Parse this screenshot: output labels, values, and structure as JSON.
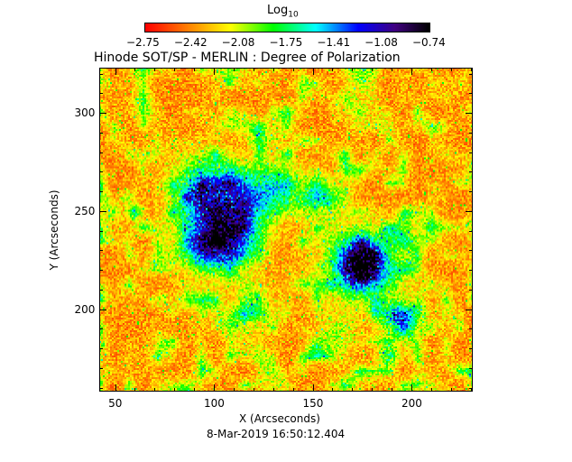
{
  "chart_data": {
    "type": "heatmap",
    "title": "Hinode SOT/SP - MERLIN : Degree of Polarization",
    "xlabel": "X (Arcseconds)",
    "ylabel": "Y (Arcseconds)",
    "xlim": [
      42,
      231
    ],
    "ylim": [
      158,
      323
    ],
    "xticks": [
      "50",
      "100",
      "150",
      "200"
    ],
    "xtick_values": [
      50,
      100,
      150,
      200
    ],
    "yticks": [
      "200",
      "250",
      "300"
    ],
    "ytick_values": [
      200,
      250,
      300
    ],
    "colorbar": {
      "label": "Log",
      "label_sub": "10",
      "ticks": [
        "−2.75",
        "−2.42",
        "−2.08",
        "−1.75",
        "−1.41",
        "−1.08",
        "−0.74"
      ],
      "range": [
        -2.75,
        -0.74
      ],
      "colormap": [
        "#ff0000",
        "#ff8000",
        "#ffff00",
        "#00ff00",
        "#00ffff",
        "#0000ff",
        "#400080",
        "#000000"
      ]
    },
    "timestamp": "8-Mar-2019 16:50:12.404"
  }
}
